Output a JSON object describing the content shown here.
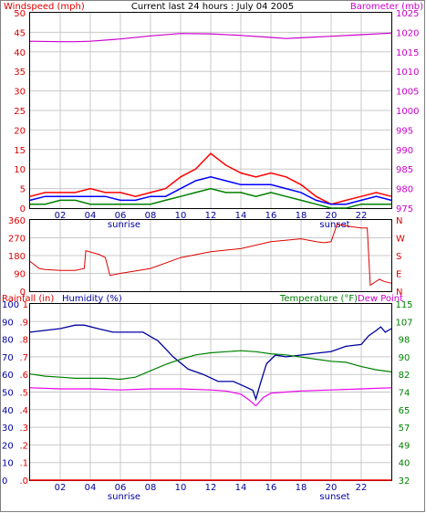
{
  "header": {
    "title": "Current last 24 hours : July 04 2005",
    "left_label": "Windspeed (mph)",
    "right_label": "Barometer (mb)"
  },
  "colors": {
    "wind": "#ff0000",
    "wind2": "#0000ff",
    "wind3": "#008000",
    "baro": "#cc00cc",
    "dir": "#dd0000",
    "humidity": "#0000a0",
    "temp": "#008000",
    "dew": "#ee00ee",
    "rain": "#ff0000",
    "grid": "#c8c8c8",
    "axis_left": "#dd0000",
    "axis_right": "#cc00cc",
    "axis_blue": "#0000a0",
    "axis_green": "#008000"
  },
  "chart_data": [
    {
      "id": "wind_baro",
      "type": "line",
      "x_tick_labels": [
        "02",
        "04",
        "06",
        "08",
        "10",
        "12",
        "14",
        "16",
        "18",
        "20",
        "22"
      ],
      "x_markers": [
        {
          "label": "sunrise",
          "at": "06"
        },
        {
          "label": "sunset",
          "at": "20"
        }
      ],
      "left_axis": {
        "label": "Windspeed (mph)",
        "range": [
          0,
          50
        ],
        "ticks": [
          "0",
          "5",
          "10",
          "15",
          "20",
          "25",
          "30",
          "35",
          "40",
          "45",
          "50"
        ]
      },
      "right_axis": {
        "label": "Barometer (mb)",
        "range": [
          975,
          1025
        ],
        "ticks": [
          "975",
          "980",
          "985",
          "990",
          "995",
          "1000",
          "1005",
          "1010",
          "1015",
          "1020",
          "1025"
        ]
      },
      "series": [
        {
          "role": "wind_gust",
          "axis": "left",
          "x": [
            0,
            1,
            2,
            3,
            4,
            5,
            6,
            7,
            8,
            9,
            10,
            11,
            12,
            13,
            14,
            15,
            16,
            17,
            18,
            19,
            20,
            21,
            22,
            23,
            24
          ],
          "y": [
            3,
            4,
            4,
            4,
            5,
            4,
            4,
            3,
            4,
            5,
            8,
            10,
            14,
            11,
            9,
            8,
            9,
            8,
            6,
            3,
            1,
            2,
            3,
            4,
            3
          ]
        },
        {
          "role": "wind_avg",
          "axis": "left",
          "x": [
            0,
            1,
            2,
            3,
            4,
            5,
            6,
            7,
            8,
            9,
            10,
            11,
            12,
            13,
            14,
            15,
            16,
            17,
            18,
            19,
            20,
            21,
            22,
            23,
            24
          ],
          "y": [
            2,
            3,
            3,
            3,
            3,
            3,
            2,
            2,
            3,
            3,
            5,
            7,
            8,
            7,
            6,
            6,
            6,
            5,
            4,
            2,
            1,
            1,
            2,
            3,
            2
          ]
        },
        {
          "role": "wind_min",
          "axis": "left",
          "x": [
            0,
            1,
            2,
            3,
            4,
            5,
            6,
            7,
            8,
            9,
            10,
            11,
            12,
            13,
            14,
            15,
            16,
            17,
            18,
            19,
            20,
            21,
            22,
            23,
            24
          ],
          "y": [
            1,
            1,
            2,
            2,
            1,
            1,
            1,
            1,
            1,
            2,
            3,
            4,
            5,
            4,
            4,
            3,
            4,
            3,
            2,
            1,
            0,
            0,
            1,
            1,
            1
          ]
        },
        {
          "role": "barometer",
          "axis": "right",
          "x": [
            0,
            2,
            3,
            4,
            6,
            8,
            10,
            12,
            14,
            16,
            17,
            18,
            20,
            22,
            24
          ],
          "y": [
            1017.7,
            1017.6,
            1017.6,
            1017.7,
            1018.3,
            1019.1,
            1019.7,
            1019.6,
            1019.2,
            1018.7,
            1018.4,
            1018.6,
            1019.0,
            1019.4,
            1019.8
          ]
        }
      ]
    },
    {
      "id": "wind_direction",
      "type": "line",
      "left_axis": {
        "range": [
          0,
          360
        ],
        "ticks": [
          "0",
          "90",
          "180",
          "270",
          "360"
        ]
      },
      "right_axis": {
        "ticks": [
          "N",
          "E",
          "S",
          "W",
          "N"
        ]
      },
      "series": [
        {
          "role": "direction",
          "x": [
            0,
            0.6,
            1,
            2,
            3,
            3.6,
            3.7,
            4.6,
            5,
            5.3,
            6,
            8,
            10,
            12,
            14,
            16,
            18,
            19,
            19.5,
            20,
            20.4,
            21,
            22,
            22.4,
            22.6,
            23.2,
            23.5,
            24
          ],
          "y": [
            150,
            115,
            110,
            105,
            105,
            115,
            205,
            185,
            170,
            80,
            90,
            115,
            170,
            200,
            215,
            250,
            265,
            250,
            245,
            250,
            340,
            330,
            320,
            320,
            30,
            60,
            50,
            40
          ]
        }
      ]
    },
    {
      "id": "rain_hum_temp",
      "type": "line",
      "left_axis_rain": {
        "label": "Rainfall (in)",
        "range": [
          0,
          1
        ],
        "ticks": [
          ".0",
          ".1",
          ".2",
          ".3",
          ".4",
          ".5",
          ".6",
          ".7",
          ".8",
          ".9",
          "1"
        ]
      },
      "left_axis_humidity": {
        "label": "Humidity (%)",
        "range": [
          0,
          100
        ],
        "ticks": [
          "0",
          "10",
          "20",
          "30",
          "40",
          "50",
          "60",
          "70",
          "80",
          "90",
          "100"
        ]
      },
      "right_axis": {
        "label": "Temperature (°F)",
        "label2": "Dew Point",
        "range": [
          32,
          115
        ],
        "ticks": [
          "32",
          "40",
          "49",
          "57",
          "65",
          "74",
          "82",
          "90",
          "98",
          "107",
          "115"
        ]
      },
      "x_tick_labels": [
        "02",
        "04",
        "06",
        "08",
        "10",
        "12",
        "14",
        "16",
        "18",
        "20",
        "22"
      ],
      "x_markers": [
        {
          "label": "sunrise",
          "at": "06"
        },
        {
          "label": "sunset",
          "at": "20"
        }
      ],
      "series": [
        {
          "role": "humidity",
          "axis": "humidity",
          "x": [
            0,
            2,
            3,
            3.6,
            4.5,
            5.5,
            6.5,
            7.5,
            8.5,
            9.5,
            10.5,
            11.5,
            12.5,
            13.5,
            14.3,
            14.8,
            15,
            15.3,
            15.7,
            16.3,
            17,
            18,
            19,
            20,
            21,
            22,
            22.5,
            23,
            23.3,
            23.6,
            24
          ],
          "y": [
            84,
            86,
            88,
            88,
            86,
            84,
            84,
            84,
            79,
            70,
            63,
            60,
            56,
            56,
            53,
            51,
            46,
            55,
            66,
            71,
            70,
            71,
            72,
            73,
            76,
            77,
            82,
            85,
            87,
            84,
            86
          ]
        },
        {
          "role": "temperature",
          "axis": "temp",
          "x": [
            0,
            1,
            2,
            3,
            4,
            5,
            6,
            7,
            8,
            9,
            10,
            11,
            12,
            13,
            14,
            15,
            16,
            17,
            18,
            19,
            20,
            21,
            22,
            23,
            24
          ],
          "y": [
            82,
            81,
            80.5,
            80,
            80,
            80,
            79.5,
            80.5,
            83.5,
            86.5,
            89,
            91,
            92,
            92.5,
            93,
            92.5,
            91.5,
            91,
            90,
            89,
            88,
            87.5,
            85.5,
            84,
            83
          ]
        },
        {
          "role": "dew_point",
          "axis": "temp",
          "x": [
            0,
            2,
            4,
            6,
            8,
            10,
            12,
            13,
            14,
            14.5,
            15,
            15.5,
            16,
            17,
            18,
            20,
            22,
            24
          ],
          "y": [
            75.5,
            75,
            75,
            74.5,
            75,
            75,
            74.5,
            74,
            72.5,
            70,
            67,
            71,
            73,
            73.5,
            74,
            74.5,
            75,
            75.5
          ]
        },
        {
          "role": "rainfall",
          "axis": "rain",
          "x": [
            0,
            24
          ],
          "y": [
            0,
            0
          ]
        }
      ]
    }
  ],
  "bottom": {
    "sunrise": "sunrise",
    "sunset": "sunset"
  }
}
